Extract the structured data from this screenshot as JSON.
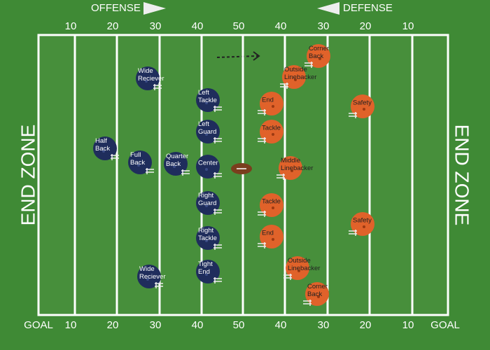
{
  "header": {
    "offense": "OFFENSE",
    "defense": "DEFENSE"
  },
  "yard_numbers_top": [
    10,
    20,
    30,
    40,
    50,
    40,
    30,
    20,
    10
  ],
  "yard_numbers_bottom": [
    10,
    20,
    30,
    40,
    50,
    40,
    30,
    20,
    10
  ],
  "goal_labels": [
    "GOAL",
    "GOAL"
  ],
  "end_zones": [
    "END ZONE",
    "END ZONE"
  ],
  "offense": [
    {
      "label": [
        "Wide",
        "Reciever"
      ]
    },
    {
      "label": [
        "Left",
        "Tackle"
      ]
    },
    {
      "label": [
        "Left",
        "Guard"
      ]
    },
    {
      "label": [
        "Half",
        "Back"
      ]
    },
    {
      "label": [
        "Full",
        "Back"
      ]
    },
    {
      "label": [
        "Quarter",
        "Back"
      ]
    },
    {
      "label": [
        "Center"
      ]
    },
    {
      "label": [
        "Right",
        "Guard"
      ]
    },
    {
      "label": [
        "Right",
        "Tackle"
      ]
    },
    {
      "label": [
        "Wide",
        "Reciever"
      ]
    },
    {
      "label": [
        "Tight",
        "End"
      ]
    }
  ],
  "defense": [
    {
      "label": [
        "Corner",
        "Back"
      ]
    },
    {
      "label": [
        "Outside",
        "Linebacker"
      ]
    },
    {
      "label": [
        "End"
      ]
    },
    {
      "label": [
        "Safety"
      ]
    },
    {
      "label": [
        "Tackle"
      ]
    },
    {
      "label": [
        "Middle",
        "Linebacker"
      ]
    },
    {
      "label": [
        "Tackle"
      ]
    },
    {
      "label": [
        "End"
      ]
    },
    {
      "label": [
        "Safety"
      ]
    },
    {
      "label": [
        "Outside",
        "Linebacker"
      ]
    },
    {
      "label": [
        "Corner",
        "Back"
      ]
    }
  ]
}
